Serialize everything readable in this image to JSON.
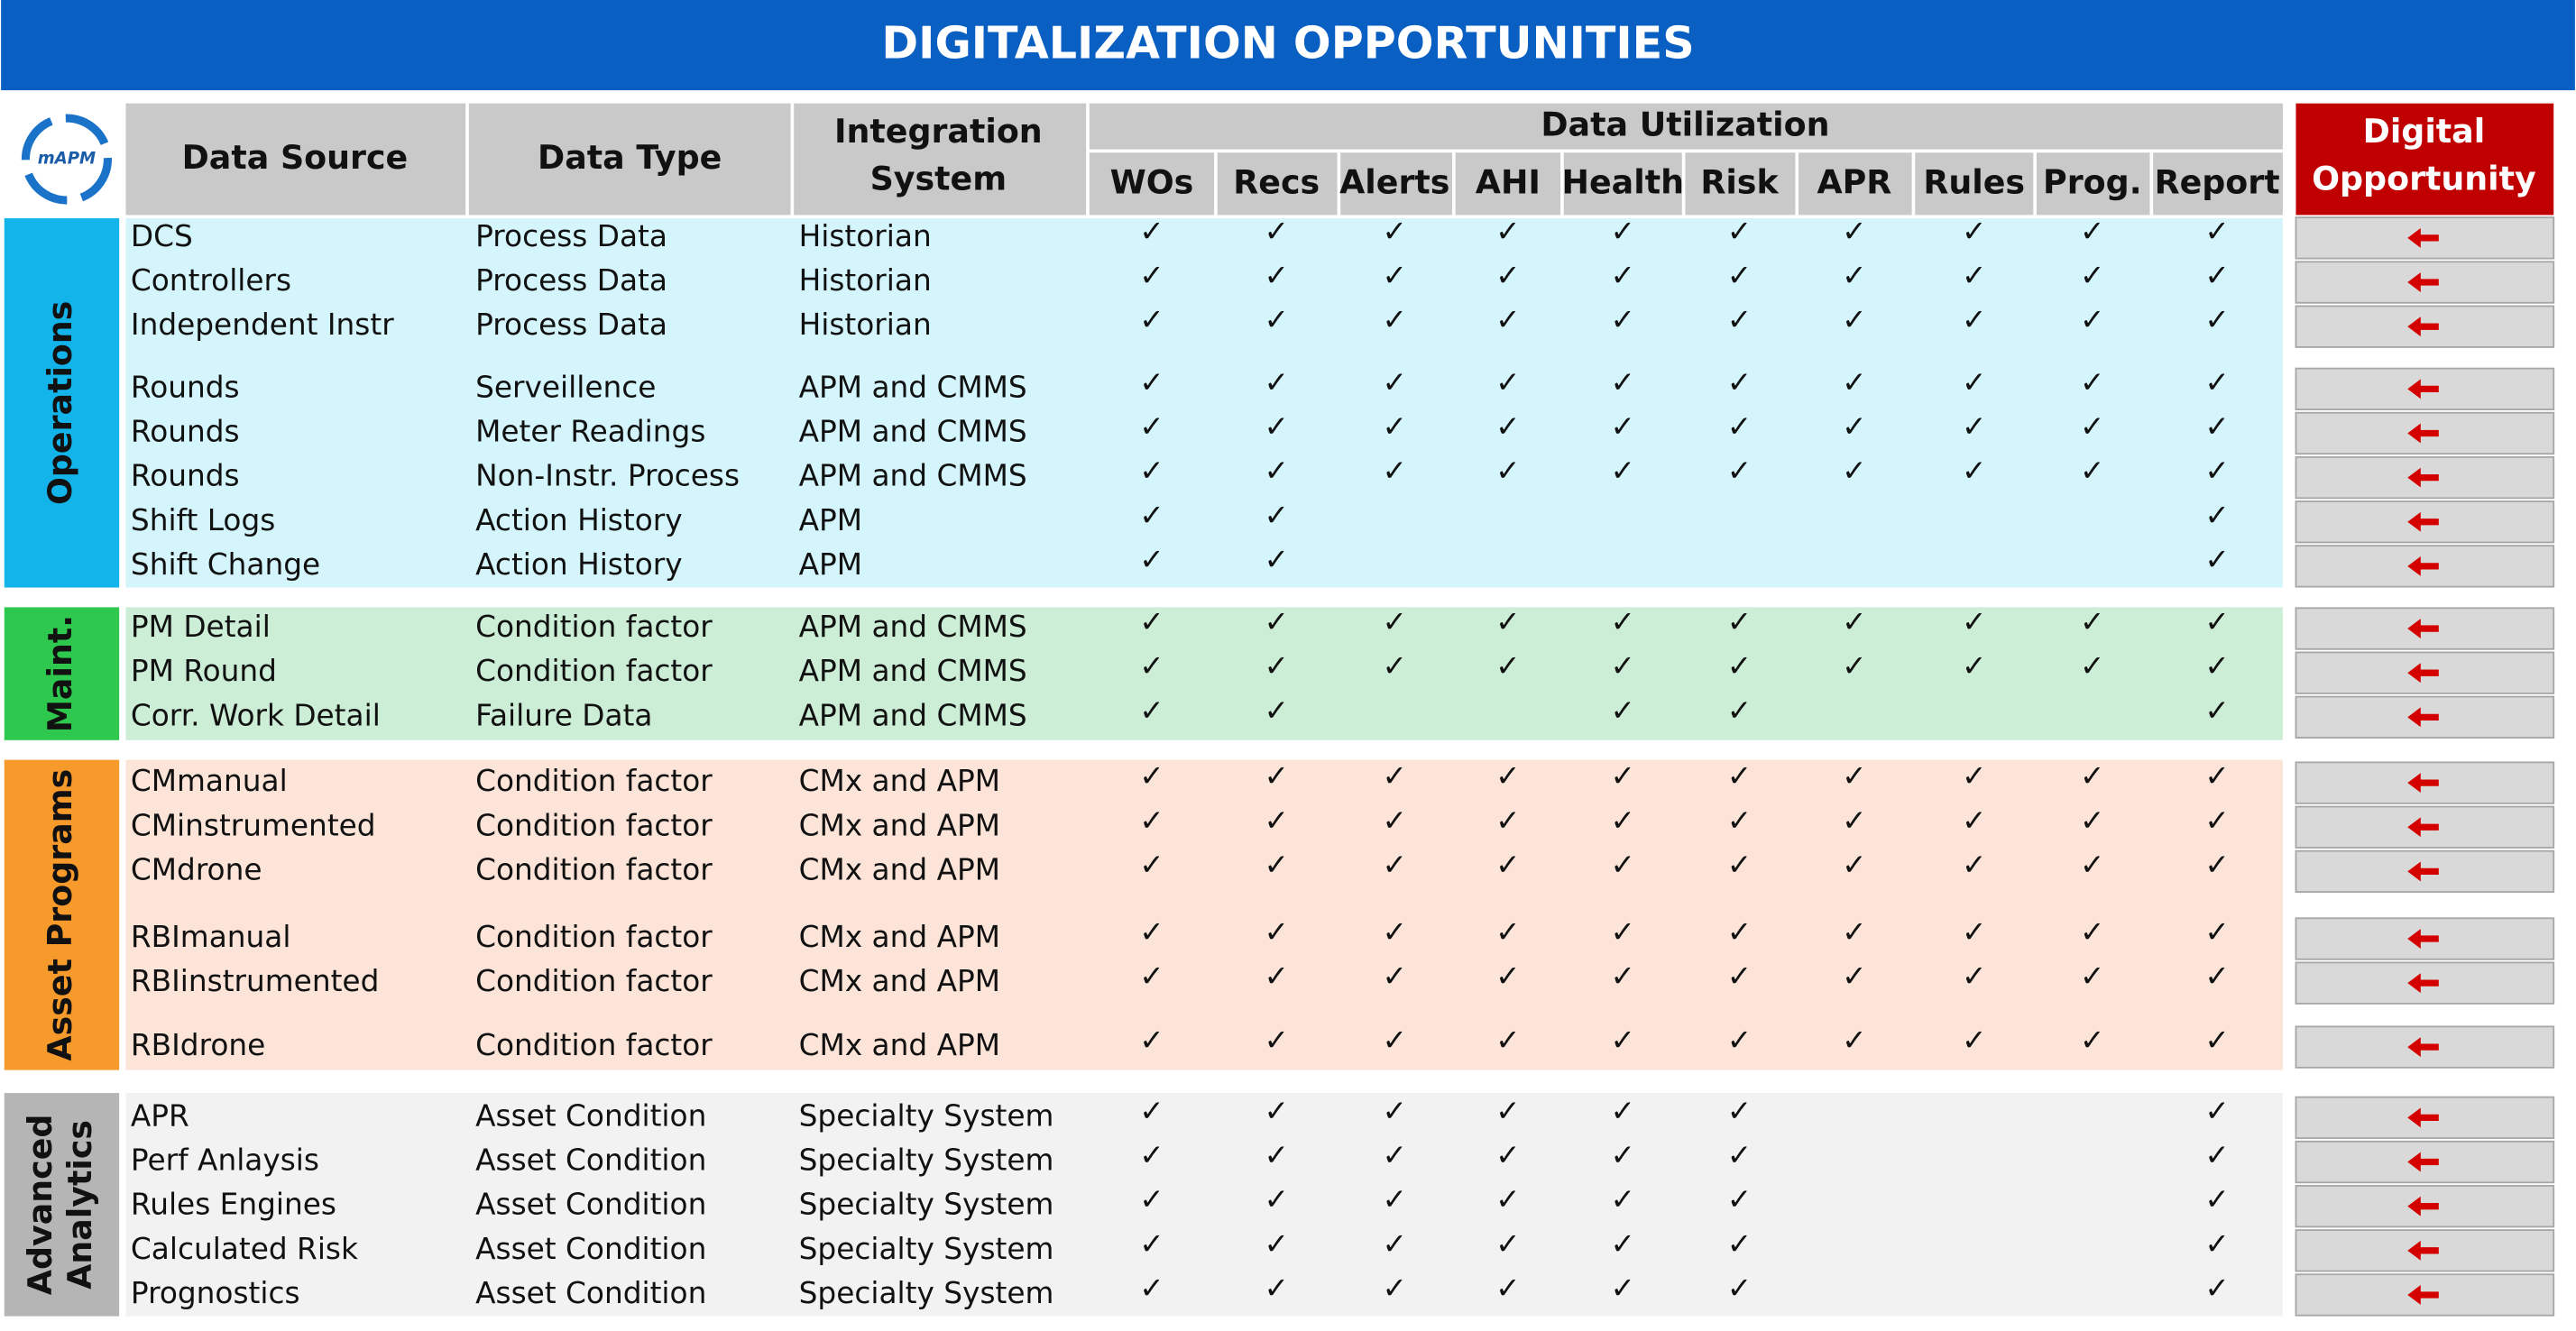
{
  "title": "DIGITALIZATION OPPORTUNITIES",
  "logo_text": "mAPM",
  "header": {
    "data_source": "Data Source",
    "data_type": "Data Type",
    "integration_system": [
      "Integration",
      "System"
    ],
    "data_utilization": "Data Utilization",
    "utilization_columns": [
      "WOs",
      "Recs",
      "Alerts",
      "AHI",
      "Health",
      "Risk",
      "APR",
      "Rules",
      "Prog.",
      "Report"
    ],
    "digital_opportunity": [
      "Digital",
      "Opportunity"
    ]
  },
  "check_symbol": "✓",
  "groups": [
    {
      "label": [
        "Operations"
      ],
      "rows": [
        {
          "source": "DCS",
          "type": "Process Data",
          "system": "Historian",
          "checks": [
            true,
            true,
            true,
            true,
            true,
            true,
            true,
            true,
            true,
            true
          ]
        },
        {
          "source": "Controllers",
          "type": "Process Data",
          "system": "Historian",
          "checks": [
            true,
            true,
            true,
            true,
            true,
            true,
            true,
            true,
            true,
            true
          ]
        },
        {
          "source": "Independent Instr",
          "type": "Process Data",
          "system": "Historian",
          "checks": [
            true,
            true,
            true,
            true,
            true,
            true,
            true,
            true,
            true,
            true
          ]
        },
        {
          "source": "Rounds",
          "type": "Serveillence",
          "system": "APM and CMMS",
          "checks": [
            true,
            true,
            true,
            true,
            true,
            true,
            true,
            true,
            true,
            true
          ]
        },
        {
          "source": "Rounds",
          "type": "Meter Readings",
          "system": "APM and CMMS",
          "checks": [
            true,
            true,
            true,
            true,
            true,
            true,
            true,
            true,
            true,
            true
          ]
        },
        {
          "source": "Rounds",
          "type": "Non-Instr. Process",
          "system": "APM and CMMS",
          "checks": [
            true,
            true,
            true,
            true,
            true,
            true,
            true,
            true,
            true,
            true
          ]
        },
        {
          "source": "Shift Logs",
          "type": "Action History",
          "system": "APM",
          "checks": [
            true,
            true,
            false,
            false,
            false,
            false,
            false,
            false,
            false,
            true
          ]
        },
        {
          "source": "Shift Change",
          "type": "Action History",
          "system": "APM",
          "checks": [
            true,
            true,
            false,
            false,
            false,
            false,
            false,
            false,
            false,
            true
          ]
        }
      ]
    },
    {
      "label": [
        "Maint."
      ],
      "rows": [
        {
          "source": "PM Detail",
          "type": "Condition factor",
          "system": "APM and CMMS",
          "checks": [
            true,
            true,
            true,
            true,
            true,
            true,
            true,
            true,
            true,
            true
          ]
        },
        {
          "source": "PM Round",
          "type": "Condition factor",
          "system": "APM and CMMS",
          "checks": [
            true,
            true,
            true,
            true,
            true,
            true,
            true,
            true,
            true,
            true
          ]
        },
        {
          "source": "Corr. Work Detail",
          "type": "Failure Data",
          "system": "APM and CMMS",
          "checks": [
            true,
            true,
            false,
            false,
            true,
            true,
            false,
            false,
            false,
            true
          ]
        }
      ]
    },
    {
      "label": [
        "Asset Programs"
      ],
      "rows": [
        {
          "source": "CMmanual",
          "type": "Condition factor",
          "system": "CMx and APM",
          "checks": [
            true,
            true,
            true,
            true,
            true,
            true,
            true,
            true,
            true,
            true
          ]
        },
        {
          "source": "CMinstrumented",
          "type": "Condition factor",
          "system": "CMx and APM",
          "checks": [
            true,
            true,
            true,
            true,
            true,
            true,
            true,
            true,
            true,
            true
          ]
        },
        {
          "source": "CMdrone",
          "type": "Condition factor",
          "system": "CMx and APM",
          "checks": [
            true,
            true,
            true,
            true,
            true,
            true,
            true,
            true,
            true,
            true
          ]
        },
        {
          "source": "RBImanual",
          "type": "Condition factor",
          "system": "CMx and APM",
          "checks": [
            true,
            true,
            true,
            true,
            true,
            true,
            true,
            true,
            true,
            true
          ]
        },
        {
          "source": "RBIinstrumented",
          "type": "Condition factor",
          "system": "CMx and APM",
          "checks": [
            true,
            true,
            true,
            true,
            true,
            true,
            true,
            true,
            true,
            true
          ]
        },
        {
          "source": "RBIdrone",
          "type": "Condition factor",
          "system": "CMx and APM",
          "checks": [
            true,
            true,
            true,
            true,
            true,
            true,
            true,
            true,
            true,
            true
          ]
        }
      ]
    },
    {
      "label": [
        "Advanced",
        "Analytics"
      ],
      "rows": [
        {
          "source": "APR",
          "type": "Asset Condition",
          "system": "Specialty System",
          "checks": [
            true,
            true,
            true,
            true,
            true,
            true,
            false,
            false,
            false,
            true
          ]
        },
        {
          "source": "Perf Anlaysis",
          "type": "Asset Condition",
          "system": "Specialty System",
          "checks": [
            true,
            true,
            true,
            true,
            true,
            true,
            false,
            false,
            false,
            true
          ]
        },
        {
          "source": "Rules Engines",
          "type": "Asset Condition",
          "system": "Specialty System",
          "checks": [
            true,
            true,
            true,
            true,
            true,
            true,
            false,
            false,
            false,
            true
          ]
        },
        {
          "source": "Calculated Risk",
          "type": "Asset Condition",
          "system": "Specialty System",
          "checks": [
            true,
            true,
            true,
            true,
            true,
            true,
            false,
            false,
            false,
            true
          ]
        },
        {
          "source": "Prognostics",
          "type": "Asset Condition",
          "system": "Specialty System",
          "checks": [
            true,
            true,
            true,
            true,
            true,
            true,
            false,
            false,
            false,
            true
          ]
        }
      ]
    }
  ]
}
